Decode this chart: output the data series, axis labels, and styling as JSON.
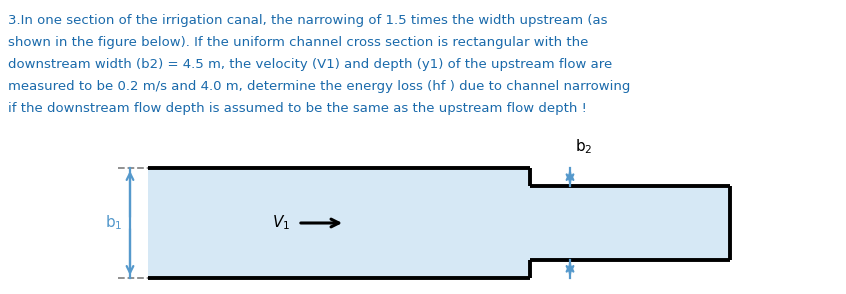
{
  "title_text": "3.In one section of the irrigation canal, the narrowing of 1.5 times the width upstream (as\nshown in the figure below). If the uniform channel cross section is rectangular with the\ndownstream width (b2) = 4.5 m, the velocity (V1) and depth (y1) of the upstream flow are\nmeasured to be 0.2 m/s and 4.0 m, determine the energy loss (hf ) due to channel narrowing\nif the downstream flow depth is assumed to be the same as the upstream flow depth !",
  "title_color": "#1a6aab",
  "bg_color": "#ffffff",
  "channel_fill": "#d6e8f5",
  "channel_edge": "#000000",
  "arrow_color": "#5599cc",
  "v1_arrow_color": "#000000",
  "dashed_color": "#888888",
  "label_b1_color": "#5599cc",
  "label_b2_color": "#000000",
  "fig_width": 8.46,
  "fig_height": 2.94,
  "dpi": 100,
  "text_fontsize": 9.5,
  "label_fontsize": 11,
  "v1_fontsize": 11
}
